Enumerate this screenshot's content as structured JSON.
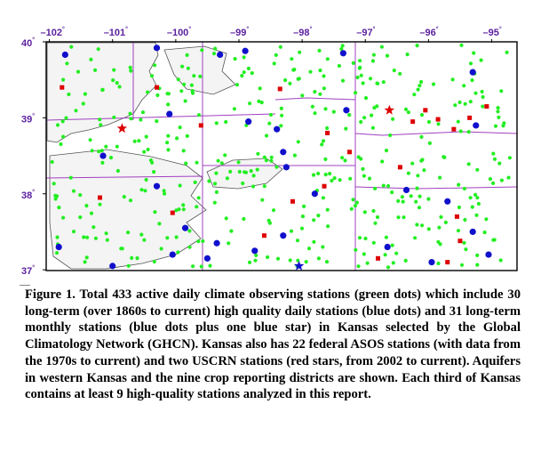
{
  "map": {
    "longitude_ticks": [
      "–102",
      "–101",
      "–100",
      "–99",
      "–98",
      "–97",
      "–96",
      "–95"
    ],
    "latitude_ticks": [
      "40",
      "39",
      "38",
      "37"
    ],
    "degree_symbol": "°",
    "colors": {
      "tick_text": "#5a1f9e",
      "border": "#000000",
      "district_lines": "#a040c0",
      "aquifer_fill": "#f4f4f4",
      "aquifer_outline": "#555555",
      "green_station": "#22ee22",
      "blue_station": "#1010cc",
      "red_station": "#dd0000"
    },
    "legend_icons": {
      "green": "green-dot-icon",
      "blue": "blue-dot-icon",
      "red_square": "red-square-icon",
      "red_star": "red-star-icon",
      "blue_star": "blue-star-icon"
    }
  },
  "chart_data": {
    "type": "scatter",
    "title": "",
    "x_range": [
      -102.05,
      -94.6
    ],
    "y_range": [
      36.99,
      40.0
    ],
    "series": [
      {
        "marker": "blue-circle",
        "points": [
          [
            -101.75,
            39.83
          ],
          [
            -100.3,
            39.92
          ],
          [
            -99.3,
            39.83
          ],
          [
            -98.9,
            39.88
          ],
          [
            -97.35,
            39.85
          ],
          [
            -95.3,
            39.6
          ],
          [
            -100.1,
            39.05
          ],
          [
            -98.85,
            38.95
          ],
          [
            -97.3,
            39.1
          ],
          [
            -98.4,
            38.85
          ],
          [
            -95.25,
            38.9
          ],
          [
            -101.15,
            38.5
          ],
          [
            -98.25,
            38.35
          ],
          [
            -100.3,
            38.1
          ],
          [
            -97.8,
            38.0
          ],
          [
            -96.35,
            38.05
          ],
          [
            -95.7,
            37.9
          ],
          [
            -99.85,
            37.55
          ],
          [
            -101.85,
            37.3
          ],
          [
            -99.35,
            37.35
          ],
          [
            -98.3,
            37.45
          ],
          [
            -95.3,
            37.5
          ],
          [
            -99.5,
            37.15
          ],
          [
            -98.75,
            37.25
          ],
          [
            -96.65,
            37.3
          ],
          [
            -100.05,
            37.2
          ],
          [
            -95.95,
            37.1
          ],
          [
            -95.05,
            37.2
          ],
          [
            -101.0,
            37.05
          ],
          [
            -98.3,
            38.55
          ]
        ]
      },
      {
        "marker": "red-square",
        "points": [
          [
            -101.8,
            39.4
          ],
          [
            -100.3,
            39.4
          ],
          [
            -98.35,
            39.38
          ],
          [
            -99.6,
            38.9
          ],
          [
            -97.6,
            38.8
          ],
          [
            -97.25,
            38.55
          ],
          [
            -95.6,
            38.85
          ],
          [
            -96.45,
            38.35
          ],
          [
            -95.35,
            39.0
          ],
          [
            -97.65,
            38.1
          ],
          [
            -98.15,
            37.9
          ],
          [
            -101.2,
            37.95
          ],
          [
            -100.05,
            37.75
          ],
          [
            -96.25,
            38.95
          ],
          [
            -95.55,
            37.7
          ],
          [
            -95.5,
            37.38
          ],
          [
            -95.85,
            38.98
          ],
          [
            -96.8,
            37.15
          ],
          [
            -95.7,
            37.1
          ],
          [
            -98.6,
            37.45
          ],
          [
            -95.08,
            39.15
          ],
          [
            -96.05,
            39.1
          ]
        ]
      },
      {
        "marker": "red-star",
        "points": [
          [
            -100.85,
            38.86
          ],
          [
            -96.62,
            39.1
          ]
        ]
      },
      {
        "marker": "blue-star",
        "points": [
          [
            -98.05,
            37.05
          ]
        ]
      },
      {
        "marker": "green-circle",
        "count": 433
      }
    ]
  },
  "caption": {
    "text": "Figure 1. Total 433 active daily climate observing stations (green dots) which include 30 long-term (over 1860s to current) high quality daily stations (blue dots) and 31 long-term monthly stations (blue dots plus one blue star) in Kansas selected by the Global Climatology Network (GHCN).  Kansas also has 22 federal ASOS stations (with data from the 1970s to current) and two USCRN stations (red stars, from 2002 to current). Aquifers in western Kansas and the nine crop reporting districts are shown. Each third of Kansas contains at least 9 high-quality stations analyzed in this report."
  }
}
